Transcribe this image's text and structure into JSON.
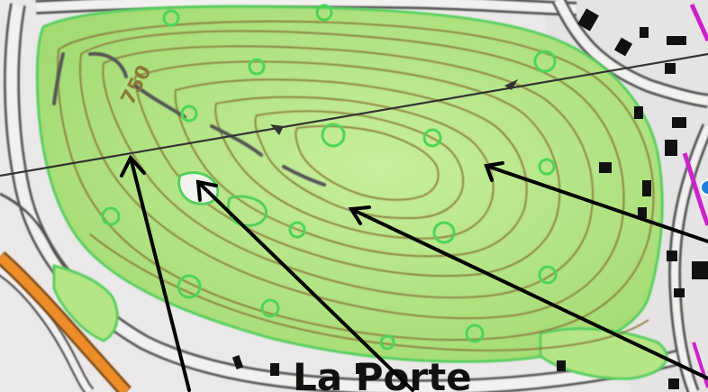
{
  "map": {
    "contour_label": "750",
    "place_label": "La Porte",
    "colors": {
      "forest": "#a9df79",
      "forest_light": "#c4ed98",
      "forest_outline": "#4fcc57",
      "contour": "#8a7a3a",
      "road_casing": "#555555",
      "road_fill": "#f4f2f0",
      "main_road": "#e98d2c",
      "building": "#111111",
      "power_line": "#333333",
      "arrow": "#000000",
      "boundary": "#cc22cc",
      "water_marker": "#1b7fe0"
    }
  }
}
